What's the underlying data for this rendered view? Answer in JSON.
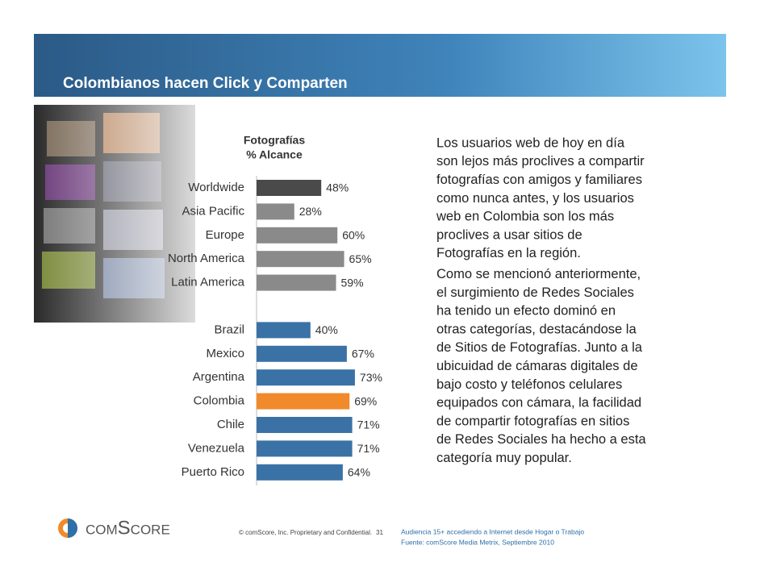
{
  "slide": {
    "title": "Colombianos hacen Click y Comparten",
    "paragraphs": [
      [
        "Los usuarios web de hoy en día",
        "son lejos más proclives a compartir",
        "fotografías con amigos y familiares",
        "como nunca antes, y los usuarios",
        "web en Colombia son los más",
        "proclives a usar sitios de",
        "Fotografías en la región."
      ],
      [
        "Como se mencionó anteriormente,",
        "el surgimiento de Redes Sociales",
        "ha tenido un efecto dominó en",
        "otras categorías, destacándose la",
        "de Sitios de Fotografías. Junto a la",
        "ubicuidad de cámaras digitales de",
        "bajo costo y teléfonos celulares",
        "equipados con cámara, la facilidad",
        "de compartir fotografías en sitios",
        "de Redes Sociales ha hecho a esta",
        "categoría muy popular."
      ]
    ],
    "logo": "comScore",
    "copyright": "© comScore, Inc.  Proprietary and Confidential.",
    "page": "31",
    "source": [
      "Audiencia 15+ accediendo a Internet desde Hogar o Trabajo",
      "Fuente:  comScore Media Metrix, Septiembre 2010"
    ]
  },
  "chart_data": {
    "type": "hbar",
    "title": "Fotografías",
    "subtitle": "% Alcance",
    "categories": [
      "Worldwide",
      "Asia Pacific",
      "Europe",
      "North America",
      "Latin America",
      null,
      "Brazil",
      "Mexico",
      "Argentina",
      "Colombia",
      "Chile",
      "Venezuela",
      "Puerto Rico"
    ],
    "values": [
      48,
      28,
      60,
      65,
      59,
      null,
      40,
      67,
      73,
      69,
      71,
      71,
      64
    ],
    "value_labels": [
      "48%",
      "28%",
      "60%",
      "65%",
      "59%",
      null,
      "40%",
      "67%",
      "73%",
      "69%",
      "71%",
      "71%",
      "64%"
    ],
    "colors": [
      "#4a4a4a",
      "#8a8a8a",
      "#8a8a8a",
      "#8a8a8a",
      "#8a8a8a",
      null,
      "#3a72a6",
      "#3a72a6",
      "#3a72a6",
      "#f08a2a",
      "#3a72a6",
      "#3a72a6",
      "#3a72a6"
    ],
    "xlim": [
      0,
      100
    ]
  }
}
